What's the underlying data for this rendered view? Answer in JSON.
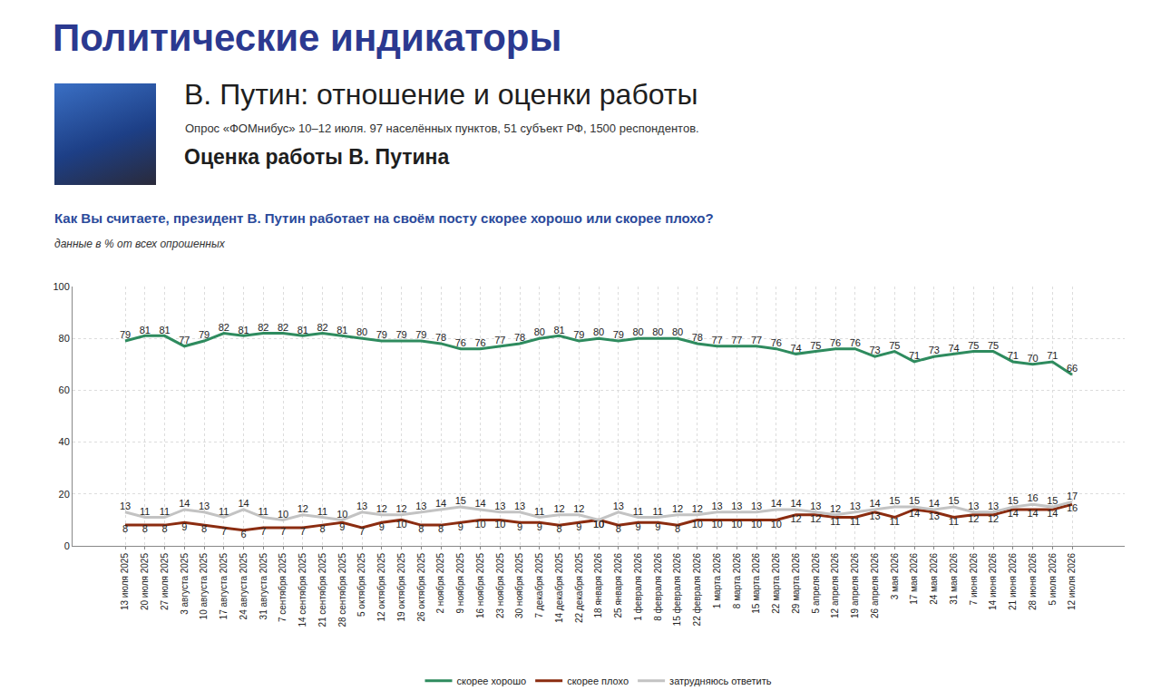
{
  "page": {
    "header": "Политические индикаторы",
    "heading": "В. Путин: отношение и оценки работы",
    "source": "Опрос «ФОМнибус» 10–12 июля. 97 населённых пунктов, 51 субъект РФ, 1500 респондентов.",
    "section": "Оценка работы В. Путина"
  },
  "chart_data": {
    "type": "line",
    "title": "Как Вы считаете, президент В. Путин работает на своём посту скорее хорошо или скорее плохо?",
    "subtitle": "данные в % от всех опрошенных",
    "categories": [
      "13 июля 2025",
      "20 июля 2025",
      "27 июля 2025",
      "3 августа 2025",
      "10 августа 2025",
      "17 августа 2025",
      "24 августа 2025",
      "31 августа 2025",
      "7 сентября 2025",
      "14 сентября 2025",
      "21 сентября 2025",
      "28 сентября 2025",
      "5 октября 2025",
      "12 октября 2025",
      "19 октября 2025",
      "26 октября 2025",
      "2 ноября 2025",
      "9 ноября 2025",
      "16 ноября 2025",
      "23 ноября 2025",
      "30 ноября 2025",
      "7 декабря 2025",
      "14 декабря 2025",
      "22 декабря 2025",
      "18 января 2026",
      "25 января 2026",
      "1 февраля 2026",
      "8 февраля 2026",
      "15 февраля 2026",
      "22 февраля 2026",
      "1 марта 2026",
      "8 марта 2026",
      "15 марта 2026",
      "22 марта 2026",
      "29 марта 2026",
      "5 апреля 2026",
      "12 апреля 2026",
      "19 апреля 2026",
      "26 апреля 2026",
      "3 мая 2026",
      "17 мая 2026",
      "24 мая 2026",
      "31 мая 2026",
      "7 июня 2026",
      "14 июня 2026",
      "21 июня 2026",
      "28 июня 2026",
      "5 июля 2026",
      "12 июля 2026"
    ],
    "series": [
      {
        "name": "скорее хорошо",
        "color": "#2e8b5e",
        "values": [
          79,
          81,
          81,
          77,
          79,
          82,
          81,
          82,
          82,
          81,
          82,
          81,
          80,
          79,
          79,
          79,
          78,
          76,
          76,
          77,
          78,
          80,
          81,
          79,
          80,
          79,
          80,
          80,
          80,
          78,
          77,
          77,
          77,
          76,
          74,
          75,
          76,
          76,
          73,
          75,
          71,
          73,
          74,
          75,
          75,
          71,
          70,
          71,
          66
        ]
      },
      {
        "name": "скорее плохо",
        "color": "#8b2c10",
        "values": [
          8,
          8,
          8,
          9,
          8,
          7,
          6,
          7,
          7,
          7,
          8,
          9,
          7,
          9,
          10,
          8,
          8,
          9,
          10,
          10,
          9,
          9,
          8,
          9,
          10,
          8,
          9,
          9,
          8,
          10,
          10,
          10,
          10,
          10,
          12,
          12,
          11,
          11,
          13,
          11,
          14,
          13,
          11,
          12,
          12,
          14,
          14,
          14,
          16
        ]
      },
      {
        "name": "затрудняюсь ответить",
        "color": "#c3c3c3",
        "values": [
          13,
          11,
          11,
          14,
          13,
          11,
          14,
          11,
          10,
          12,
          11,
          10,
          13,
          12,
          12,
          13,
          14,
          15,
          14,
          13,
          13,
          11,
          12,
          12,
          10,
          13,
          11,
          11,
          12,
          12,
          13,
          13,
          13,
          14,
          14,
          13,
          12,
          13,
          14,
          15,
          15,
          14,
          15,
          13,
          13,
          15,
          16,
          15,
          17
        ]
      }
    ],
    "ylim": [
      0,
      100
    ],
    "yticks": [
      0,
      20,
      40,
      60,
      80,
      100
    ],
    "grid": true,
    "legend": "bottom",
    "data_labels": true
  }
}
